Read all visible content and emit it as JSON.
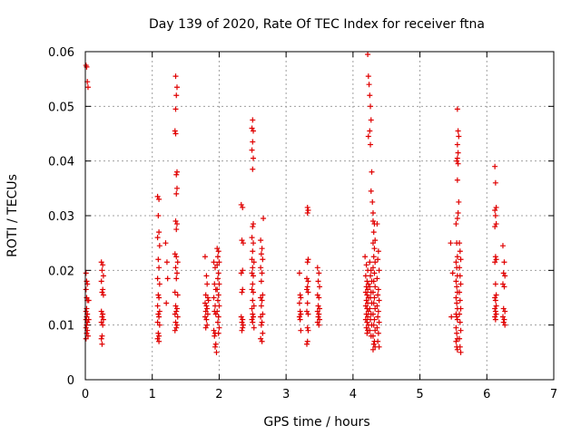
{
  "chart_data": {
    "type": "scatter",
    "title": "Day 139 of 2020, Rate Of TEC Index for receiver ftna",
    "xlabel": "GPS time / hours",
    "ylabel": "ROTI / TECUs",
    "xlim": [
      0,
      7
    ],
    "ylim": [
      0,
      0.06
    ],
    "xticks": [
      "0",
      "1",
      "2",
      "3",
      "4",
      "5",
      "6",
      "7"
    ],
    "yticks": [
      "0",
      "0.01",
      "0.02",
      "0.03",
      "0.04",
      "0.05",
      "0.06"
    ],
    "grid": true,
    "marker": "+",
    "color": "#e00000",
    "points": [
      [
        0.01,
        0.0575
      ],
      [
        0.02,
        0.0572
      ],
      [
        0.03,
        0.0545
      ],
      [
        0.04,
        0.0535
      ],
      [
        0.01,
        0.0195
      ],
      [
        0.02,
        0.018
      ],
      [
        0.03,
        0.0175
      ],
      [
        0.01,
        0.0165
      ],
      [
        0.02,
        0.015
      ],
      [
        0.03,
        0.0145
      ],
      [
        0.02,
        0.013
      ],
      [
        0.01,
        0.0125
      ],
      [
        0.03,
        0.012
      ],
      [
        0.02,
        0.0115
      ],
      [
        0.01,
        0.011
      ],
      [
        0.03,
        0.0105
      ],
      [
        0.02,
        0.01
      ],
      [
        0.01,
        0.0095
      ],
      [
        0.03,
        0.009
      ],
      [
        0.02,
        0.0085
      ],
      [
        0.04,
        0.008
      ],
      [
        0.01,
        0.0075
      ],
      [
        0.05,
        0.0145
      ],
      [
        0.05,
        0.011
      ],
      [
        0.24,
        0.0215
      ],
      [
        0.26,
        0.021
      ],
      [
        0.25,
        0.02
      ],
      [
        0.27,
        0.019
      ],
      [
        0.24,
        0.018
      ],
      [
        0.26,
        0.0165
      ],
      [
        0.25,
        0.016
      ],
      [
        0.27,
        0.0155
      ],
      [
        0.24,
        0.0125
      ],
      [
        0.26,
        0.012
      ],
      [
        0.25,
        0.0115
      ],
      [
        0.27,
        0.011
      ],
      [
        0.24,
        0.0105
      ],
      [
        0.26,
        0.01
      ],
      [
        0.25,
        0.008
      ],
      [
        0.24,
        0.0075
      ],
      [
        0.25,
        0.0065
      ],
      [
        1.08,
        0.0335
      ],
      [
        1.1,
        0.033
      ],
      [
        1.09,
        0.03
      ],
      [
        1.1,
        0.027
      ],
      [
        1.08,
        0.026
      ],
      [
        1.11,
        0.0245
      ],
      [
        1.09,
        0.022
      ],
      [
        1.1,
        0.0205
      ],
      [
        1.08,
        0.0185
      ],
      [
        1.11,
        0.0175
      ],
      [
        1.09,
        0.0155
      ],
      [
        1.1,
        0.015
      ],
      [
        1.08,
        0.0135
      ],
      [
        1.11,
        0.0125
      ],
      [
        1.09,
        0.012
      ],
      [
        1.1,
        0.0115
      ],
      [
        1.08,
        0.0105
      ],
      [
        1.11,
        0.01
      ],
      [
        1.09,
        0.0085
      ],
      [
        1.1,
        0.008
      ],
      [
        1.08,
        0.0075
      ],
      [
        1.1,
        0.007
      ],
      [
        1.2,
        0.025
      ],
      [
        1.22,
        0.0215
      ],
      [
        1.21,
        0.014
      ],
      [
        1.23,
        0.0185
      ],
      [
        1.35,
        0.0555
      ],
      [
        1.37,
        0.0535
      ],
      [
        1.36,
        0.052
      ],
      [
        1.35,
        0.0495
      ],
      [
        1.34,
        0.0455
      ],
      [
        1.35,
        0.045
      ],
      [
        1.37,
        0.038
      ],
      [
        1.36,
        0.0375
      ],
      [
        1.37,
        0.035
      ],
      [
        1.36,
        0.034
      ],
      [
        1.35,
        0.029
      ],
      [
        1.37,
        0.0285
      ],
      [
        1.36,
        0.0275
      ],
      [
        1.34,
        0.023
      ],
      [
        1.36,
        0.0225
      ],
      [
        1.38,
        0.0215
      ],
      [
        1.35,
        0.0205
      ],
      [
        1.37,
        0.0195
      ],
      [
        1.36,
        0.0185
      ],
      [
        1.34,
        0.016
      ],
      [
        1.38,
        0.0155
      ],
      [
        1.35,
        0.0135
      ],
      [
        1.37,
        0.013
      ],
      [
        1.36,
        0.0125
      ],
      [
        1.34,
        0.012
      ],
      [
        1.38,
        0.0115
      ],
      [
        1.35,
        0.0105
      ],
      [
        1.37,
        0.01
      ],
      [
        1.36,
        0.0095
      ],
      [
        1.34,
        0.009
      ],
      [
        1.79,
        0.0225
      ],
      [
        1.81,
        0.019
      ],
      [
        1.82,
        0.0175
      ],
      [
        1.8,
        0.0155
      ],
      [
        1.83,
        0.015
      ],
      [
        1.79,
        0.014
      ],
      [
        1.81,
        0.0135
      ],
      [
        1.82,
        0.013
      ],
      [
        1.8,
        0.0125
      ],
      [
        1.83,
        0.012
      ],
      [
        1.79,
        0.0115
      ],
      [
        1.81,
        0.011
      ],
      [
        1.82,
        0.01
      ],
      [
        1.8,
        0.0095
      ],
      [
        1.84,
        0.0145
      ],
      [
        1.92,
        0.0215
      ],
      [
        1.94,
        0.0205
      ],
      [
        1.93,
        0.0175
      ],
      [
        1.95,
        0.0165
      ],
      [
        1.92,
        0.015
      ],
      [
        1.94,
        0.0135
      ],
      [
        1.93,
        0.0125
      ],
      [
        1.95,
        0.012
      ],
      [
        1.92,
        0.009
      ],
      [
        1.94,
        0.0085
      ],
      [
        1.93,
        0.008
      ],
      [
        1.95,
        0.0065
      ],
      [
        1.94,
        0.006
      ],
      [
        1.96,
        0.005
      ],
      [
        1.97,
        0.024
      ],
      [
        1.99,
        0.0235
      ],
      [
        1.98,
        0.0225
      ],
      [
        2.0,
        0.0215
      ],
      [
        1.97,
        0.021
      ],
      [
        1.99,
        0.0195
      ],
      [
        1.98,
        0.0185
      ],
      [
        2.0,
        0.0175
      ],
      [
        1.97,
        0.0165
      ],
      [
        1.99,
        0.0155
      ],
      [
        1.98,
        0.0145
      ],
      [
        2.0,
        0.0135
      ],
      [
        1.97,
        0.0125
      ],
      [
        1.99,
        0.0115
      ],
      [
        1.98,
        0.0105
      ],
      [
        2.0,
        0.0095
      ],
      [
        1.99,
        0.0085
      ],
      [
        2.33,
        0.032
      ],
      [
        2.35,
        0.0315
      ],
      [
        2.34,
        0.0255
      ],
      [
        2.36,
        0.025
      ],
      [
        2.35,
        0.02
      ],
      [
        2.33,
        0.0195
      ],
      [
        2.35,
        0.0165
      ],
      [
        2.34,
        0.016
      ],
      [
        2.33,
        0.0115
      ],
      [
        2.35,
        0.011
      ],
      [
        2.34,
        0.0105
      ],
      [
        2.36,
        0.01
      ],
      [
        2.35,
        0.0095
      ],
      [
        2.34,
        0.009
      ],
      [
        2.5,
        0.0475
      ],
      [
        2.49,
        0.046
      ],
      [
        2.51,
        0.0455
      ],
      [
        2.5,
        0.0435
      ],
      [
        2.49,
        0.042
      ],
      [
        2.51,
        0.0405
      ],
      [
        2.5,
        0.0385
      ],
      [
        2.51,
        0.0285
      ],
      [
        2.5,
        0.028
      ],
      [
        2.49,
        0.026
      ],
      [
        2.51,
        0.025
      ],
      [
        2.5,
        0.0235
      ],
      [
        2.49,
        0.022
      ],
      [
        2.52,
        0.0215
      ],
      [
        2.5,
        0.0205
      ],
      [
        2.49,
        0.0195
      ],
      [
        2.51,
        0.019
      ],
      [
        2.5,
        0.0175
      ],
      [
        2.49,
        0.0165
      ],
      [
        2.51,
        0.016
      ],
      [
        2.5,
        0.0145
      ],
      [
        2.52,
        0.0135
      ],
      [
        2.49,
        0.013
      ],
      [
        2.5,
        0.012
      ],
      [
        2.51,
        0.0115
      ],
      [
        2.49,
        0.011
      ],
      [
        2.5,
        0.0105
      ],
      [
        2.52,
        0.0095
      ],
      [
        2.62,
        0.0255
      ],
      [
        2.64,
        0.024
      ],
      [
        2.63,
        0.023
      ],
      [
        2.65,
        0.022
      ],
      [
        2.62,
        0.0205
      ],
      [
        2.64,
        0.0195
      ],
      [
        2.63,
        0.018
      ],
      [
        2.65,
        0.0155
      ],
      [
        2.62,
        0.015
      ],
      [
        2.64,
        0.0145
      ],
      [
        2.63,
        0.0135
      ],
      [
        2.65,
        0.012
      ],
      [
        2.62,
        0.0115
      ],
      [
        2.64,
        0.0105
      ],
      [
        2.63,
        0.01
      ],
      [
        2.65,
        0.0085
      ],
      [
        2.62,
        0.0075
      ],
      [
        2.64,
        0.007
      ],
      [
        2.66,
        0.0295
      ],
      [
        3.2,
        0.0195
      ],
      [
        3.21,
        0.0155
      ],
      [
        3.22,
        0.015
      ],
      [
        3.2,
        0.014
      ],
      [
        3.21,
        0.0125
      ],
      [
        3.22,
        0.012
      ],
      [
        3.2,
        0.0115
      ],
      [
        3.21,
        0.011
      ],
      [
        3.22,
        0.009
      ],
      [
        3.32,
        0.0315
      ],
      [
        3.33,
        0.031
      ],
      [
        3.32,
        0.0305
      ],
      [
        3.33,
        0.022
      ],
      [
        3.32,
        0.0215
      ],
      [
        3.31,
        0.0185
      ],
      [
        3.33,
        0.018
      ],
      [
        3.32,
        0.017
      ],
      [
        3.31,
        0.0165
      ],
      [
        3.33,
        0.016
      ],
      [
        3.32,
        0.014
      ],
      [
        3.31,
        0.0125
      ],
      [
        3.33,
        0.012
      ],
      [
        3.32,
        0.0095
      ],
      [
        3.33,
        0.009
      ],
      [
        3.32,
        0.007
      ],
      [
        3.31,
        0.0065
      ],
      [
        3.47,
        0.0205
      ],
      [
        3.49,
        0.0195
      ],
      [
        3.48,
        0.018
      ],
      [
        3.5,
        0.017
      ],
      [
        3.47,
        0.0155
      ],
      [
        3.49,
        0.015
      ],
      [
        3.48,
        0.0135
      ],
      [
        3.5,
        0.013
      ],
      [
        3.47,
        0.0125
      ],
      [
        3.49,
        0.012
      ],
      [
        3.48,
        0.0115
      ],
      [
        3.5,
        0.011
      ],
      [
        3.47,
        0.0105
      ],
      [
        3.49,
        0.01
      ],
      [
        4.22,
        0.0595
      ],
      [
        4.23,
        0.0555
      ],
      [
        4.24,
        0.054
      ],
      [
        4.25,
        0.052
      ],
      [
        4.26,
        0.05
      ],
      [
        4.27,
        0.0475
      ],
      [
        4.25,
        0.0455
      ],
      [
        4.23,
        0.0445
      ],
      [
        4.26,
        0.043
      ],
      [
        4.28,
        0.038
      ],
      [
        4.27,
        0.0345
      ],
      [
        4.29,
        0.0325
      ],
      [
        4.3,
        0.0305
      ],
      [
        4.18,
        0.0225
      ],
      [
        4.2,
        0.021
      ],
      [
        4.22,
        0.02
      ],
      [
        4.19,
        0.019
      ],
      [
        4.21,
        0.018
      ],
      [
        4.23,
        0.0175
      ],
      [
        4.2,
        0.017
      ],
      [
        4.22,
        0.0165
      ],
      [
        4.19,
        0.016
      ],
      [
        4.21,
        0.0155
      ],
      [
        4.23,
        0.015
      ],
      [
        4.2,
        0.0145
      ],
      [
        4.22,
        0.014
      ],
      [
        4.19,
        0.0135
      ],
      [
        4.21,
        0.013
      ],
      [
        4.23,
        0.0125
      ],
      [
        4.2,
        0.012
      ],
      [
        4.22,
        0.0115
      ],
      [
        4.19,
        0.011
      ],
      [
        4.21,
        0.0105
      ],
      [
        4.23,
        0.01
      ],
      [
        4.2,
        0.0095
      ],
      [
        4.22,
        0.009
      ],
      [
        4.21,
        0.0085
      ],
      [
        4.25,
        0.0215
      ],
      [
        4.27,
        0.02
      ],
      [
        4.26,
        0.019
      ],
      [
        4.28,
        0.018
      ],
      [
        4.25,
        0.017
      ],
      [
        4.27,
        0.016
      ],
      [
        4.26,
        0.015
      ],
      [
        4.28,
        0.014
      ],
      [
        4.25,
        0.013
      ],
      [
        4.27,
        0.012
      ],
      [
        4.26,
        0.011
      ],
      [
        4.28,
        0.01
      ],
      [
        4.25,
        0.009
      ],
      [
        4.27,
        0.008
      ],
      [
        4.3,
        0.029
      ],
      [
        4.32,
        0.0285
      ],
      [
        4.31,
        0.027
      ],
      [
        4.33,
        0.0255
      ],
      [
        4.3,
        0.025
      ],
      [
        4.32,
        0.024
      ],
      [
        4.31,
        0.0225
      ],
      [
        4.33,
        0.0215
      ],
      [
        4.3,
        0.0205
      ],
      [
        4.32,
        0.0195
      ],
      [
        4.31,
        0.018
      ],
      [
        4.33,
        0.017
      ],
      [
        4.3,
        0.016
      ],
      [
        4.32,
        0.015
      ],
      [
        4.31,
        0.014
      ],
      [
        4.33,
        0.013
      ],
      [
        4.3,
        0.012
      ],
      [
        4.32,
        0.011
      ],
      [
        4.31,
        0.01
      ],
      [
        4.33,
        0.009
      ],
      [
        4.3,
        0.008
      ],
      [
        4.32,
        0.007
      ],
      [
        4.31,
        0.0065
      ],
      [
        4.33,
        0.006
      ],
      [
        4.3,
        0.0055
      ],
      [
        4.36,
        0.0285
      ],
      [
        4.38,
        0.0235
      ],
      [
        4.37,
        0.022
      ],
      [
        4.39,
        0.02
      ],
      [
        4.36,
        0.0185
      ],
      [
        4.38,
        0.0165
      ],
      [
        4.37,
        0.0155
      ],
      [
        4.39,
        0.0145
      ],
      [
        4.36,
        0.0135
      ],
      [
        4.38,
        0.0125
      ],
      [
        4.37,
        0.0115
      ],
      [
        4.39,
        0.0105
      ],
      [
        4.36,
        0.0095
      ],
      [
        4.38,
        0.0085
      ],
      [
        4.37,
        0.007
      ],
      [
        4.39,
        0.006
      ],
      [
        5.46,
        0.025
      ],
      [
        5.47,
        0.0115
      ],
      [
        5.49,
        0.0195
      ],
      [
        5.54,
        0.0285
      ],
      [
        5.55,
        0.025
      ],
      [
        5.56,
        0.0225
      ],
      [
        5.54,
        0.0215
      ],
      [
        5.55,
        0.0205
      ],
      [
        5.56,
        0.019
      ],
      [
        5.54,
        0.018
      ],
      [
        5.55,
        0.017
      ],
      [
        5.56,
        0.016
      ],
      [
        5.54,
        0.015
      ],
      [
        5.55,
        0.014
      ],
      [
        5.56,
        0.013
      ],
      [
        5.54,
        0.012
      ],
      [
        5.55,
        0.0115
      ],
      [
        5.56,
        0.011
      ],
      [
        5.54,
        0.0095
      ],
      [
        5.55,
        0.0085
      ],
      [
        5.56,
        0.0075
      ],
      [
        5.54,
        0.007
      ],
      [
        5.55,
        0.006
      ],
      [
        5.56,
        0.0055
      ],
      [
        5.56,
        0.0495
      ],
      [
        5.57,
        0.0455
      ],
      [
        5.58,
        0.0445
      ],
      [
        5.56,
        0.043
      ],
      [
        5.57,
        0.0415
      ],
      [
        5.56,
        0.0405
      ],
      [
        5.55,
        0.04
      ],
      [
        5.57,
        0.0395
      ],
      [
        5.56,
        0.0365
      ],
      [
        5.58,
        0.0325
      ],
      [
        5.57,
        0.0305
      ],
      [
        5.56,
        0.0295
      ],
      [
        5.59,
        0.025
      ],
      [
        5.6,
        0.0235
      ],
      [
        5.61,
        0.022
      ],
      [
        5.59,
        0.0205
      ],
      [
        5.6,
        0.019
      ],
      [
        5.61,
        0.0175
      ],
      [
        5.59,
        0.016
      ],
      [
        5.6,
        0.0145
      ],
      [
        5.61,
        0.013
      ],
      [
        5.59,
        0.012
      ],
      [
        5.6,
        0.0105
      ],
      [
        5.61,
        0.009
      ],
      [
        5.59,
        0.0075
      ],
      [
        5.6,
        0.006
      ],
      [
        5.61,
        0.005
      ],
      [
        6.12,
        0.039
      ],
      [
        6.13,
        0.036
      ],
      [
        6.14,
        0.0315
      ],
      [
        6.12,
        0.031
      ],
      [
        6.13,
        0.03
      ],
      [
        6.14,
        0.0285
      ],
      [
        6.12,
        0.028
      ],
      [
        6.13,
        0.0225
      ],
      [
        6.14,
        0.022
      ],
      [
        6.12,
        0.0215
      ],
      [
        6.13,
        0.0175
      ],
      [
        6.14,
        0.0155
      ],
      [
        6.12,
        0.015
      ],
      [
        6.13,
        0.0145
      ],
      [
        6.14,
        0.0135
      ],
      [
        6.12,
        0.013
      ],
      [
        6.13,
        0.0125
      ],
      [
        6.14,
        0.012
      ],
      [
        6.12,
        0.0115
      ],
      [
        6.13,
        0.011
      ],
      [
        6.24,
        0.0245
      ],
      [
        6.26,
        0.0215
      ],
      [
        6.25,
        0.0195
      ],
      [
        6.27,
        0.019
      ],
      [
        6.24,
        0.0175
      ],
      [
        6.26,
        0.017
      ],
      [
        6.25,
        0.013
      ],
      [
        6.27,
        0.0125
      ],
      [
        6.24,
        0.0115
      ],
      [
        6.26,
        0.011
      ],
      [
        6.25,
        0.0105
      ],
      [
        6.27,
        0.01
      ]
    ]
  }
}
